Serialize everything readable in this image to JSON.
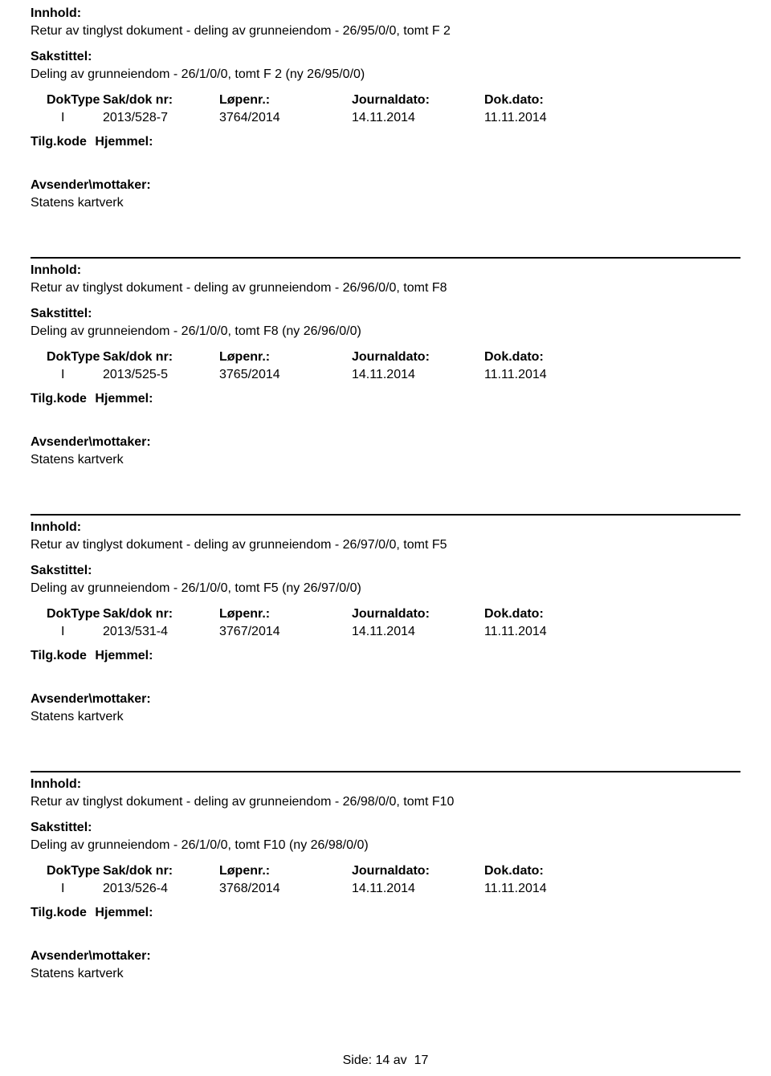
{
  "labels": {
    "innhold": "Innhold:",
    "sakstittel": "Sakstittel:",
    "dokType": "DokType",
    "sakDokNr": "Sak/dok nr:",
    "lopenr": "Løpenr.:",
    "journaldato": "Journaldato:",
    "dokDato": "Dok.dato:",
    "tilgKode": "Tilg.kode",
    "hjemmel": "Hjemmel:",
    "avsender": "Avsender\\mottaker:",
    "side": "Side:",
    "av": "av"
  },
  "entries": [
    {
      "innhold": "Retur av tinglyst dokument - deling av grunneiendom - 26/95/0/0, tomt F 2",
      "sakstittel": "Deling av grunneiendom - 26/1/0/0, tomt F 2 (ny 26/95/0/0)",
      "dokType": "I",
      "sakDokNr": "2013/528-7",
      "lopenr": "3764/2014",
      "journaldato": "14.11.2014",
      "dokDato": "11.11.2014",
      "avsender": "Statens kartverk"
    },
    {
      "innhold": "Retur av tinglyst dokument - deling av grunneiendom - 26/96/0/0, tomt F8",
      "sakstittel": "Deling av grunneiendom - 26/1/0/0, tomt F8 (ny 26/96/0/0)",
      "dokType": "I",
      "sakDokNr": "2013/525-5",
      "lopenr": "3765/2014",
      "journaldato": "14.11.2014",
      "dokDato": "11.11.2014",
      "avsender": "Statens kartverk"
    },
    {
      "innhold": "Retur av tinglyst dokument - deling av grunneiendom - 26/97/0/0, tomt F5",
      "sakstittel": "Deling av grunneiendom - 26/1/0/0, tomt F5 (ny 26/97/0/0)",
      "dokType": "I",
      "sakDokNr": "2013/531-4",
      "lopenr": "3767/2014",
      "journaldato": "14.11.2014",
      "dokDato": "11.11.2014",
      "avsender": "Statens kartverk"
    },
    {
      "innhold": "Retur av tinglyst dokument - deling av grunneiendom - 26/98/0/0, tomt F10",
      "sakstittel": "Deling av grunneiendom - 26/1/0/0, tomt F10 (ny 26/98/0/0)",
      "dokType": "I",
      "sakDokNr": "2013/526-4",
      "lopenr": "3768/2014",
      "journaldato": "14.11.2014",
      "dokDato": "11.11.2014",
      "avsender": "Statens kartverk"
    }
  ],
  "pagination": {
    "current": "14",
    "total": "17"
  }
}
